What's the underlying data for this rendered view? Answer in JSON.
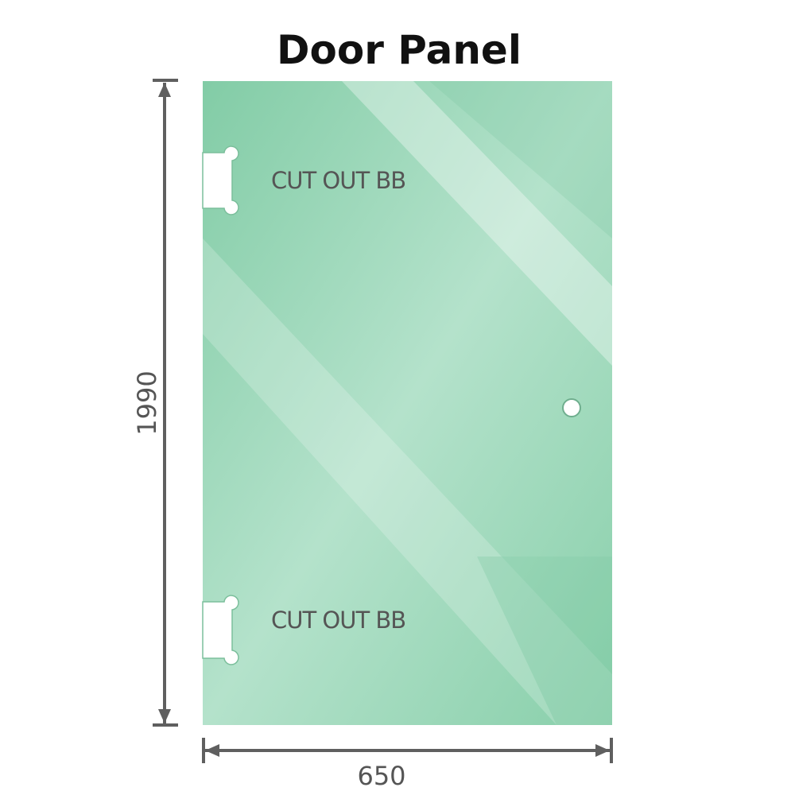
{
  "title": "Door Panel",
  "panel": {
    "color_base": "#8fd3b0",
    "color_light": "#b9e5cf",
    "color_dark": "#7ec9a3",
    "cutout_labels": [
      "CUT OUT BB",
      "CUT OUT BB"
    ]
  },
  "dimensions": {
    "height": "1990",
    "width": "650",
    "line_color": "#5f5f5f"
  }
}
